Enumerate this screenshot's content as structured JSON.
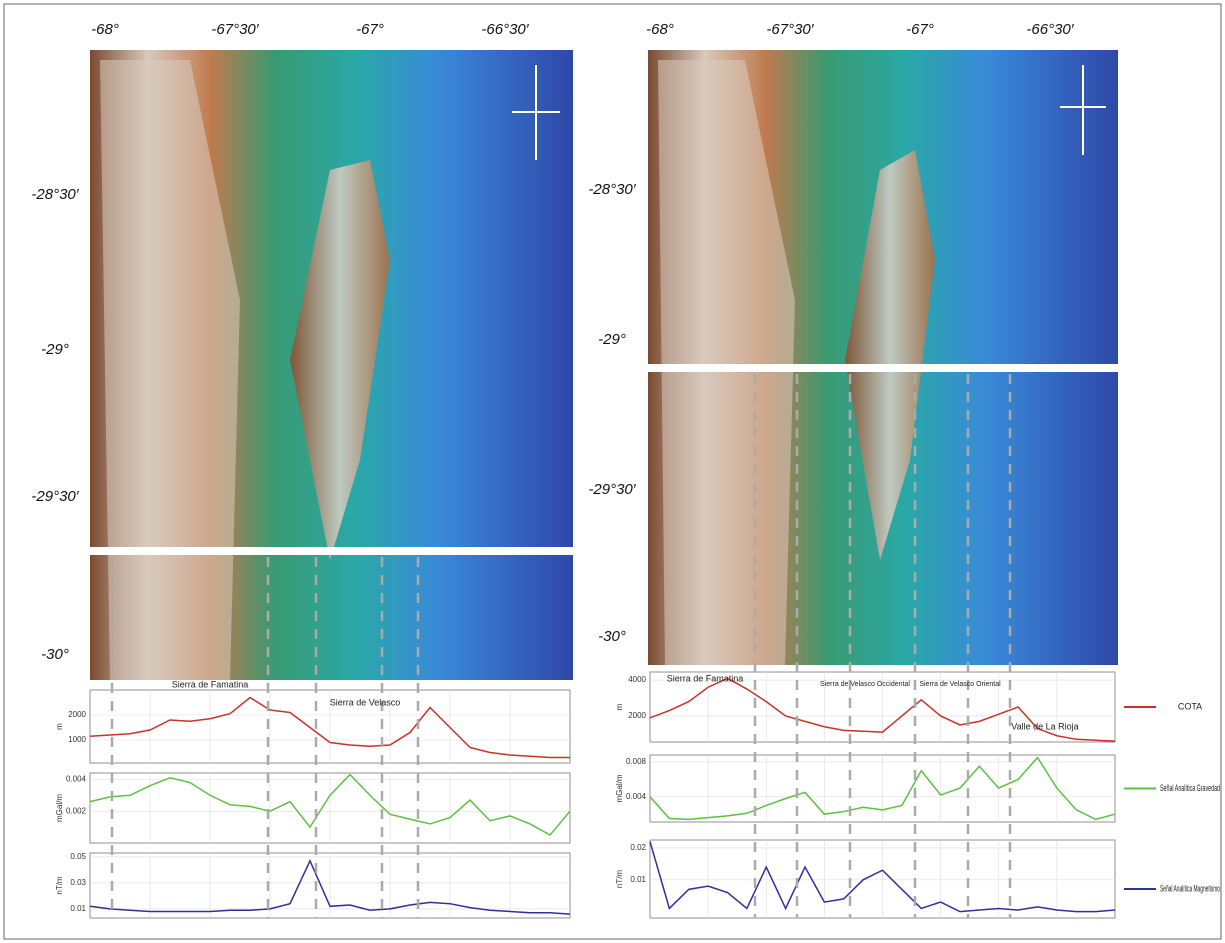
{
  "maps": [
    {
      "x_labels": [
        "-68°",
        "-67°30′",
        "-67°",
        "-66°30′"
      ],
      "y_labels": [
        "-28°30′",
        "-29°",
        "-29°30′",
        "-30°"
      ],
      "profiles": [
        {
          "unit": "m",
          "color": "#c83228",
          "ylim": [
            80,
            3000
          ],
          "yticks": [
            1000,
            2000
          ],
          "values": [
            1150,
            1200,
            1250,
            1400,
            1800,
            1750,
            1850,
            2050,
            2700,
            2200,
            2100,
            1500,
            900,
            800,
            750,
            800,
            1300,
            2300,
            1500,
            700,
            500,
            400,
            350,
            300,
            300
          ]
        },
        {
          "unit": "mGal/m",
          "color": "#5cc040",
          "ylim": [
            0,
            0.0044
          ],
          "yticks": [
            0.002,
            0.004
          ],
          "values": [
            0.0026,
            0.0029,
            0.003,
            0.0036,
            0.0041,
            0.0038,
            0.003,
            0.0024,
            0.0023,
            0.002,
            0.0026,
            0.001,
            0.003,
            0.0043,
            0.003,
            0.0018,
            0.0015,
            0.0012,
            0.0016,
            0.0027,
            0.0014,
            0.0017,
            0.0012,
            0.0005,
            0.002
          ]
        },
        {
          "unit": "nT/m",
          "color": "#2f2f9c",
          "ylim": [
            0.003,
            0.053
          ],
          "yticks": [
            0.01,
            0.03,
            0.05
          ],
          "values": [
            0.012,
            0.01,
            0.009,
            0.008,
            0.008,
            0.008,
            0.008,
            0.009,
            0.009,
            0.01,
            0.014,
            0.047,
            0.012,
            0.013,
            0.009,
            0.01,
            0.013,
            0.015,
            0.014,
            0.011,
            0.009,
            0.008,
            0.007,
            0.007,
            0.006
          ]
        }
      ],
      "annotations": [
        "Sierra de Famatina",
        "Sierra de Velasco"
      ]
    },
    {
      "x_labels": [
        "-68°",
        "-67°30′",
        "-67°",
        "-66°30′"
      ],
      "y_labels": [
        "-28°30′",
        "-29°",
        "-29°30′",
        "-30°"
      ],
      "profiles": [
        {
          "unit": "m",
          "color": "#c83228",
          "ylim": [
            550,
            4450
          ],
          "yticks": [
            2000,
            4000
          ],
          "values": [
            1900,
            2300,
            2800,
            3600,
            4100,
            3500,
            2800,
            2000,
            1700,
            1400,
            1200,
            1150,
            1100,
            2000,
            2900,
            2000,
            1500,
            1700,
            2100,
            2500,
            1300,
            900,
            700,
            650,
            600
          ]
        },
        {
          "unit": "mGal/m",
          "color": "#5cc040",
          "ylim": [
            0.0011,
            0.0088
          ],
          "yticks": [
            0.004,
            0.008
          ],
          "values": [
            0.004,
            0.0015,
            0.0014,
            0.0016,
            0.0018,
            0.0021,
            0.003,
            0.0038,
            0.0045,
            0.002,
            0.0023,
            0.0028,
            0.0025,
            0.003,
            0.007,
            0.0042,
            0.005,
            0.0075,
            0.005,
            0.006,
            0.0085,
            0.005,
            0.0025,
            0.0014,
            0.002
          ]
        },
        {
          "unit": "nT/m",
          "color": "#2f2f9c",
          "ylim": [
            -0.002,
            0.0225
          ],
          "yticks": [
            0.01,
            0.02
          ],
          "values": [
            0.022,
            0.001,
            0.007,
            0.008,
            0.006,
            0.001,
            0.014,
            0.001,
            0.014,
            0.003,
            0.004,
            0.01,
            0.013,
            0.007,
            0.001,
            0.003,
            0,
            0.0005,
            0.001,
            0.0005,
            0.0015,
            0.0005,
            0,
            0,
            0.0005
          ]
        }
      ],
      "annotations": [
        "Sierra de Famatina",
        "Sierra de Velasco Occidental",
        "Sierra de Velasco Oriental",
        "Valle de La Rioja"
      ],
      "legend": [
        "COTA",
        "Señal Analítica Gravedad",
        "Señal Analítica Magnetismo"
      ]
    }
  ]
}
